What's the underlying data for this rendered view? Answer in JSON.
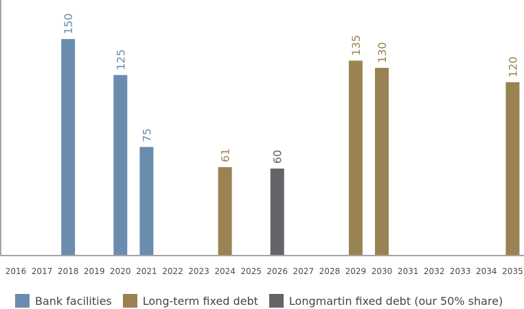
{
  "chart_data": {
    "type": "bar",
    "categories": [
      "2016",
      "2017",
      "2018",
      "2019",
      "2020",
      "2021",
      "2022",
      "2023",
      "2024",
      "2025",
      "2026",
      "2027",
      "2028",
      "2029",
      "2030",
      "2031",
      "2032",
      "2033",
      "2034",
      "2035"
    ],
    "series": [
      {
        "name": "Bank facilities",
        "color": "#6a8cae",
        "values": [
          null,
          null,
          150,
          null,
          125,
          75,
          null,
          null,
          null,
          null,
          null,
          null,
          null,
          null,
          null,
          null,
          null,
          null,
          null,
          null
        ]
      },
      {
        "name": "Long-term fixed debt",
        "color": "#9a8352",
        "values": [
          null,
          null,
          null,
          null,
          null,
          null,
          null,
          null,
          61,
          null,
          null,
          null,
          null,
          135,
          130,
          null,
          null,
          null,
          null,
          120
        ]
      },
      {
        "name": "Longmartin fixed debt (our 50% share)",
        "color": "#646469",
        "values": [
          null,
          null,
          null,
          null,
          null,
          null,
          null,
          null,
          null,
          null,
          60,
          null,
          null,
          null,
          null,
          null,
          null,
          null,
          null,
          null
        ]
      }
    ],
    "title": "",
    "xlabel": "",
    "ylabel": "",
    "ylim": [
      0,
      165
    ],
    "grid": false,
    "legend": "bottom-left"
  }
}
